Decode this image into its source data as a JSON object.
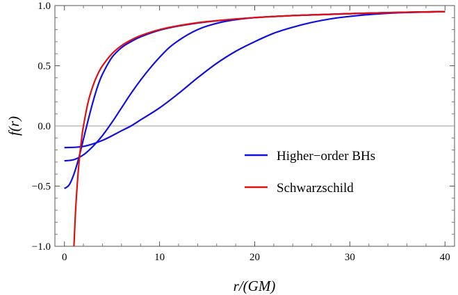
{
  "chart_data": {
    "type": "line",
    "title": "",
    "xlabel": "r/(GM)",
    "ylabel": "f(r)",
    "xlim": [
      -1,
      41
    ],
    "ylim": [
      -1.0,
      1.0
    ],
    "x_ticks": [
      0,
      10,
      20,
      30,
      40
    ],
    "y_ticks": [
      -1.0,
      -0.5,
      0.0,
      0.5,
      1.0
    ],
    "x_tick_labels": [
      "0",
      "10",
      "20",
      "30",
      "40"
    ],
    "y_tick_labels": [
      "−1.0",
      "−0.5",
      "0.0",
      "0.5",
      "1.0"
    ],
    "zero_line": true,
    "grid": false,
    "legend": {
      "placement": "center-right",
      "entries": [
        {
          "label": "Higher−order BHs",
          "color": "#1010e0"
        },
        {
          "label": "Schwarzschild",
          "color": "#e01010"
        }
      ]
    },
    "series": [
      {
        "name": "Schwarzschild",
        "color": "#e01010",
        "x": [
          1.0,
          1.2,
          1.5,
          1.8,
          2.0,
          2.5,
          3.0,
          3.5,
          4.0,
          5.0,
          6.0,
          7.0,
          8.0,
          10.0,
          12.0,
          15.0,
          20.0,
          25.0,
          30.0,
          35.0,
          40.0
        ],
        "y": [
          -1.0,
          -0.667,
          -0.333,
          -0.111,
          0.0,
          0.2,
          0.333,
          0.429,
          0.5,
          0.6,
          0.667,
          0.714,
          0.75,
          0.8,
          0.833,
          0.867,
          0.9,
          0.92,
          0.933,
          0.943,
          0.95
        ]
      },
      {
        "name": "",
        "color": "#1010e0",
        "x": [
          0,
          0.5,
          1.0,
          1.5,
          2.0,
          2.5,
          3.0,
          3.5,
          4.0,
          5.0,
          6.0,
          7.0,
          8.0,
          10.0,
          12.0,
          15.0,
          20.0,
          25.0,
          30.0,
          35.0,
          40.0
        ],
        "y": [
          -0.52,
          -0.49,
          -0.4,
          -0.27,
          -0.11,
          0.05,
          0.2,
          0.33,
          0.43,
          0.57,
          0.65,
          0.7,
          0.74,
          0.795,
          0.83,
          0.865,
          0.9,
          0.92,
          0.933,
          0.943,
          0.95
        ]
      },
      {
        "name": "",
        "color": "#1010e0",
        "x": [
          0,
          1.0,
          2.0,
          3.0,
          4.0,
          5.0,
          6.0,
          7.0,
          8.0,
          9.0,
          10.0,
          11.0,
          12.0,
          13.0,
          14.0,
          15.0,
          17.0,
          20.0,
          25.0,
          30.0,
          35.0,
          40.0
        ],
        "y": [
          -0.29,
          -0.28,
          -0.24,
          -0.17,
          -0.08,
          0.03,
          0.15,
          0.27,
          0.38,
          0.48,
          0.57,
          0.65,
          0.71,
          0.76,
          0.8,
          0.83,
          0.87,
          0.9,
          0.92,
          0.933,
          0.943,
          0.95
        ]
      },
      {
        "name": "",
        "color": "#1010e0",
        "x": [
          0,
          2.0,
          4.0,
          6.0,
          7.0,
          8.0,
          10.0,
          12.0,
          14.0,
          16.0,
          18.0,
          20.0,
          22.0,
          24.0,
          26.0,
          28.0,
          30.0,
          32.0,
          35.0,
          40.0
        ],
        "y": [
          -0.18,
          -0.17,
          -0.12,
          -0.04,
          0.0,
          0.05,
          0.15,
          0.27,
          0.4,
          0.52,
          0.62,
          0.7,
          0.77,
          0.82,
          0.86,
          0.89,
          0.91,
          0.925,
          0.94,
          0.95
        ]
      }
    ]
  }
}
